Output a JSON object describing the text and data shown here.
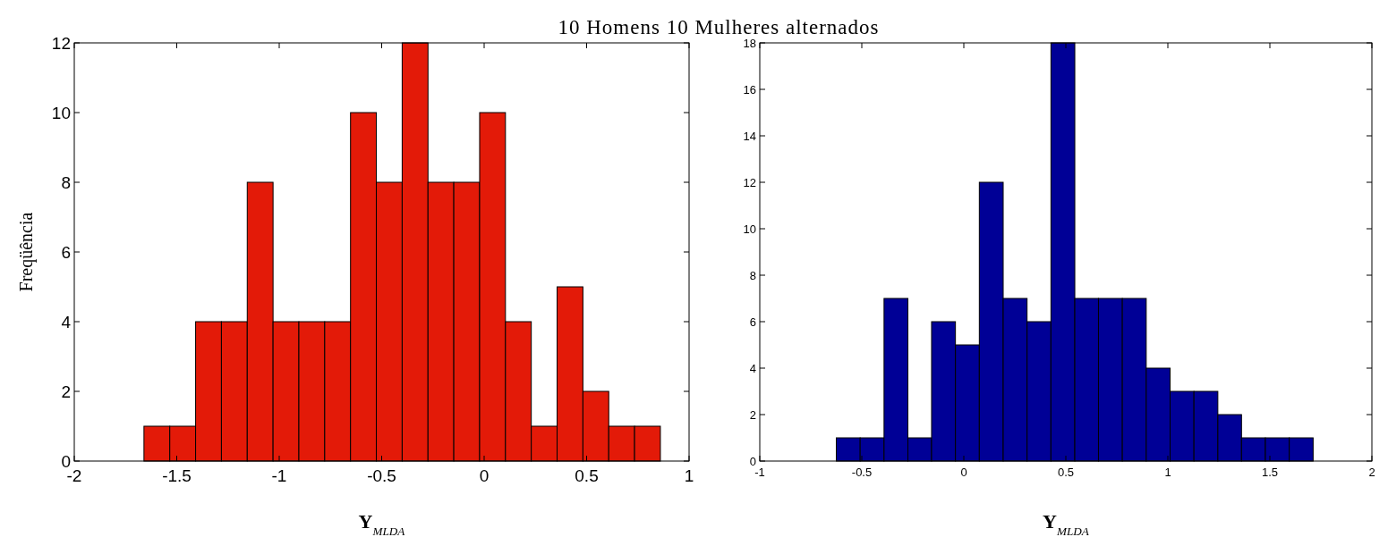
{
  "chart_data": [
    {
      "type": "histogram",
      "title": "10 Homens 10 Mulheres alternados",
      "xlabel": "Y$_{MLDA}$",
      "ylabel": "Freqüência",
      "color": "#e31a08",
      "bins": [
        -1.66,
        -1.534,
        -1.408,
        -1.282,
        -1.156,
        -1.03,
        -0.904,
        -0.778,
        -0.652,
        -0.526,
        -0.4,
        -0.274,
        -0.148,
        -0.022,
        0.104,
        0.23,
        0.356,
        0.482,
        0.608,
        0.734,
        0.86
      ],
      "values": [
        1,
        1,
        4,
        4,
        8,
        4,
        4,
        4,
        10,
        8,
        12,
        8,
        8,
        10,
        4,
        1,
        5,
        2,
        1,
        1
      ],
      "xlim": [
        -2,
        1
      ],
      "xticks": [
        -2,
        -1.5,
        -1,
        -0.5,
        0,
        0.5,
        1
      ],
      "ylim": [
        0,
        12
      ],
      "yticks": [
        0,
        2,
        4,
        6,
        8,
        10,
        12
      ],
      "grid": false
    },
    {
      "type": "histogram",
      "xlabel": "Y$_{MLDA}$",
      "color": "#000096",
      "bins": [
        -0.625,
        -0.508,
        -0.391,
        -0.274,
        -0.158,
        -0.041,
        0.076,
        0.193,
        0.31,
        0.427,
        0.544,
        0.66,
        0.777,
        0.894,
        1.011,
        1.128,
        1.245,
        1.361,
        1.478,
        1.595,
        1.712
      ],
      "values": [
        1,
        1,
        7,
        1,
        6,
        5,
        12,
        7,
        6,
        18,
        7,
        7,
        7,
        4,
        3,
        3,
        2,
        1,
        1,
        1
      ],
      "xlim": [
        -1,
        2
      ],
      "xticks": [
        -1,
        -0.5,
        0,
        0.5,
        1,
        1.5,
        2
      ],
      "ylim": [
        0,
        18
      ],
      "yticks": [
        0,
        2,
        4,
        6,
        8,
        10,
        12,
        14,
        16,
        18
      ],
      "grid": false
    }
  ]
}
